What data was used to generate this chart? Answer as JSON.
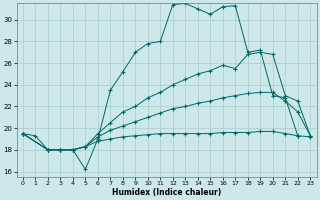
{
  "xlabel": "Humidex (Indice chaleur)",
  "xlim": [
    -0.5,
    23.5
  ],
  "ylim": [
    15.5,
    31.5
  ],
  "xticks": [
    0,
    1,
    2,
    3,
    4,
    5,
    6,
    7,
    8,
    9,
    10,
    11,
    12,
    13,
    14,
    15,
    16,
    17,
    18,
    19,
    20,
    21,
    22,
    23
  ],
  "yticks": [
    16,
    18,
    20,
    22,
    24,
    26,
    28,
    30
  ],
  "bg_color": "#cce8e8",
  "line_color": "#006868",
  "grid_color": "#aacccc",
  "curve1_x": [
    0,
    1,
    2,
    3,
    4,
    5,
    6,
    7,
    8,
    9,
    10,
    11,
    12,
    13,
    14,
    15,
    16,
    17,
    18,
    19,
    20,
    21,
    22
  ],
  "curve1_y": [
    19.5,
    19.3,
    18.0,
    18.0,
    18.0,
    16.2,
    19.0,
    23.5,
    25.2,
    27.0,
    27.8,
    28.0,
    31.4,
    31.5,
    31.0,
    30.5,
    31.2,
    31.3,
    27.0,
    27.2,
    23.0,
    22.8,
    19.3
  ],
  "curve2_x": [
    0,
    2,
    3,
    4,
    5,
    6,
    7,
    8,
    9,
    10,
    11,
    12,
    13,
    14,
    15,
    16,
    17,
    18,
    19,
    20,
    21,
    22,
    23
  ],
  "curve2_y": [
    19.5,
    18.0,
    18.0,
    18.0,
    18.3,
    19.5,
    20.5,
    21.5,
    22.0,
    22.8,
    23.3,
    24.0,
    24.5,
    25.0,
    25.3,
    25.8,
    25.5,
    26.8,
    27.0,
    26.8,
    23.0,
    22.5,
    19.3
  ],
  "curve3_x": [
    0,
    2,
    3,
    4,
    5,
    6,
    7,
    8,
    9,
    10,
    11,
    12,
    13,
    14,
    15,
    16,
    17,
    18,
    19,
    20,
    21,
    22,
    23
  ],
  "curve3_y": [
    19.5,
    18.0,
    18.0,
    18.0,
    18.3,
    19.2,
    19.8,
    20.2,
    20.6,
    21.0,
    21.4,
    21.8,
    22.0,
    22.3,
    22.5,
    22.8,
    23.0,
    23.2,
    23.3,
    23.3,
    22.5,
    21.5,
    19.3
  ],
  "curve4_x": [
    0,
    2,
    3,
    4,
    5,
    6,
    7,
    8,
    9,
    10,
    11,
    12,
    13,
    14,
    15,
    16,
    17,
    18,
    19,
    20,
    21,
    22,
    23
  ],
  "curve4_y": [
    19.5,
    18.0,
    18.0,
    18.0,
    18.3,
    18.8,
    19.0,
    19.2,
    19.3,
    19.4,
    19.5,
    19.5,
    19.5,
    19.5,
    19.5,
    19.6,
    19.6,
    19.6,
    19.7,
    19.7,
    19.5,
    19.3,
    19.2
  ]
}
